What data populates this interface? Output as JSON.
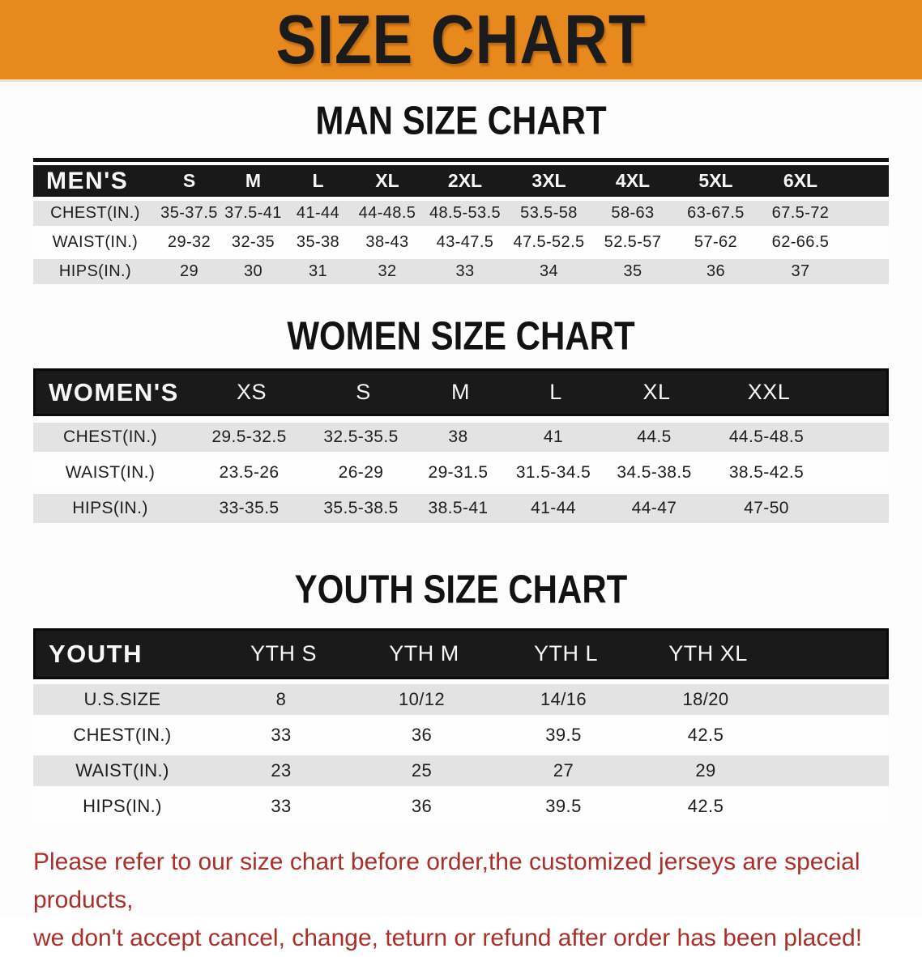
{
  "banner": {
    "title": "SIZE CHART"
  },
  "men": {
    "heading": "MAN SIZE CHART",
    "corner": "MEN'S",
    "sizes": [
      "S",
      "M",
      "L",
      "XL",
      "2XL",
      "3XL",
      "4XL",
      "5XL",
      "6XL"
    ],
    "rows": [
      {
        "label": "CHEST(IN.)",
        "values": [
          "35-37.5",
          "37.5-41",
          "41-44",
          "44-48.5",
          "48.5-53.5",
          "53.5-58",
          "58-63",
          "63-67.5",
          "67.5-72"
        ]
      },
      {
        "label": "WAIST(IN.)",
        "values": [
          "29-32",
          "32-35",
          "35-38",
          "38-43",
          "43-47.5",
          "47.5-52.5",
          "52.5-57",
          "57-62",
          "62-66.5"
        ]
      },
      {
        "label": "HIPS(IN.)",
        "values": [
          "29",
          "30",
          "31",
          "32",
          "33",
          "34",
          "35",
          "36",
          "37"
        ]
      }
    ]
  },
  "women": {
    "heading": "WOMEN SIZE CHART",
    "corner": "WOMEN'S",
    "sizes": [
      "XS",
      "S",
      "M",
      "L",
      "XL",
      "XXL"
    ],
    "rows": [
      {
        "label": "CHEST(IN.)",
        "values": [
          "29.5-32.5",
          "32.5-35.5",
          "38",
          "41",
          "44.5",
          "44.5-48.5"
        ]
      },
      {
        "label": "WAIST(IN.)",
        "values": [
          "23.5-26",
          "26-29",
          "29-31.5",
          "31.5-34.5",
          "34.5-38.5",
          "38.5-42.5"
        ]
      },
      {
        "label": "HIPS(IN.)",
        "values": [
          "33-35.5",
          "35.5-38.5",
          "38.5-41",
          "41-44",
          "44-47",
          "47-50"
        ]
      }
    ]
  },
  "youth": {
    "heading": "YOUTH SIZE CHART",
    "corner": "YOUTH",
    "sizes": [
      "YTH S",
      "YTH M",
      "YTH L",
      "YTH XL"
    ],
    "rows": [
      {
        "label": "U.S.SIZE",
        "values": [
          "8",
          "10/12",
          "14/16",
          "18/20"
        ]
      },
      {
        "label": "CHEST(IN.)",
        "values": [
          "33",
          "36",
          "39.5",
          "42.5"
        ]
      },
      {
        "label": "WAIST(IN.)",
        "values": [
          "23",
          "25",
          "27",
          "29"
        ]
      },
      {
        "label": "HIPS(IN.)",
        "values": [
          "33",
          "36",
          "39.5",
          "42.5"
        ]
      }
    ]
  },
  "footer": {
    "line1": "Please refer to our size chart before order,the customized jerseys are special products,",
    "line2": "we don't accept cancel, change, teturn or refund after order has been placed!"
  },
  "colors": {
    "banner_orange": "#E8891E",
    "header_black": "#191919",
    "row_gray": "#E3E3E3",
    "footer_red": "#A9302A"
  }
}
